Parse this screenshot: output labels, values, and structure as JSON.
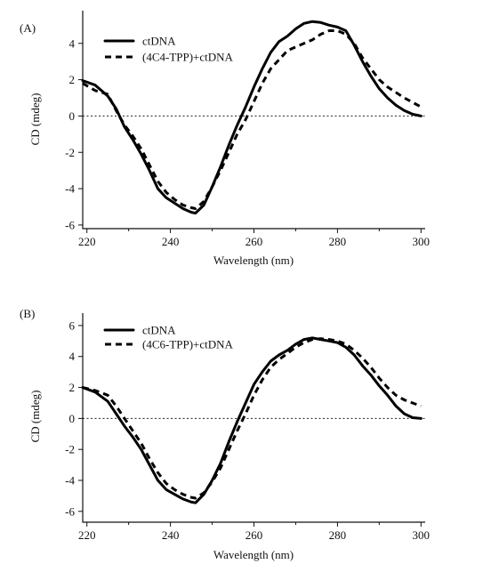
{
  "chart_data": [
    {
      "type": "line",
      "panel_label": "(A)",
      "xlabel": "Wavelength (nm)",
      "ylabel": "CD (mdeg)",
      "xlim": [
        219,
        301
      ],
      "ylim": [
        -6.2,
        5.8
      ],
      "xticks": [
        220,
        240,
        260,
        280,
        300
      ],
      "yticks": [
        -6,
        -4,
        -2,
        0,
        2,
        4
      ],
      "zero_line": true,
      "grid": false,
      "legend_position": "top-left",
      "series": [
        {
          "name": "ctDNA",
          "style": "solid",
          "x": [
            219,
            222,
            225,
            227,
            229,
            231,
            233,
            235,
            237,
            239,
            241,
            243,
            245,
            246,
            248,
            250,
            252,
            254,
            256,
            258,
            260,
            262,
            264,
            266,
            268,
            270,
            272,
            274,
            276,
            278,
            280,
            282,
            284,
            286,
            288,
            290,
            292,
            294,
            296,
            298,
            300
          ],
          "y": [
            1.95,
            1.7,
            1.1,
            0.4,
            -0.6,
            -1.3,
            -2.1,
            -3.0,
            -4.0,
            -4.5,
            -4.8,
            -5.1,
            -5.3,
            -5.35,
            -4.9,
            -3.9,
            -2.8,
            -1.6,
            -0.5,
            0.5,
            1.6,
            2.6,
            3.5,
            4.1,
            4.4,
            4.8,
            5.1,
            5.2,
            5.15,
            5.0,
            4.9,
            4.7,
            3.9,
            3.0,
            2.2,
            1.5,
            1.0,
            0.6,
            0.3,
            0.1,
            0.0
          ]
        },
        {
          "name": "(4C4-TPP)+ctDNA",
          "style": "dashed",
          "x": [
            219,
            222,
            225,
            227,
            229,
            231,
            233,
            235,
            237,
            239,
            241,
            243,
            245,
            246,
            248,
            250,
            252,
            254,
            256,
            258,
            260,
            262,
            264,
            266,
            268,
            270,
            272,
            274,
            276,
            278,
            280,
            282,
            284,
            286,
            288,
            290,
            292,
            294,
            296,
            298,
            300
          ],
          "y": [
            1.8,
            1.4,
            1.2,
            0.3,
            -0.5,
            -1.1,
            -1.8,
            -2.7,
            -3.6,
            -4.2,
            -4.6,
            -4.9,
            -5.05,
            -5.1,
            -4.7,
            -3.9,
            -3.0,
            -2.0,
            -1.0,
            -0.2,
            0.8,
            1.8,
            2.6,
            3.1,
            3.6,
            3.8,
            4.0,
            4.2,
            4.5,
            4.7,
            4.7,
            4.5,
            4.0,
            3.2,
            2.6,
            2.0,
            1.6,
            1.3,
            1.0,
            0.75,
            0.5
          ]
        }
      ]
    },
    {
      "type": "line",
      "panel_label": "(B)",
      "xlabel": "Wavelength (nm)",
      "ylabel": "CD (mdeg)",
      "xlim": [
        219,
        301
      ],
      "ylim": [
        -6.7,
        6.8
      ],
      "xticks": [
        220,
        240,
        260,
        280,
        300
      ],
      "yticks": [
        -6,
        -4,
        -2,
        0,
        2,
        4,
        6
      ],
      "zero_line": true,
      "grid": false,
      "legend_position": "top-left",
      "series": [
        {
          "name": "ctDNA",
          "style": "solid",
          "x": [
            219,
            222,
            225,
            227,
            229,
            231,
            233,
            235,
            237,
            239,
            241,
            243,
            245,
            246,
            248,
            250,
            252,
            254,
            256,
            258,
            260,
            262,
            264,
            266,
            268,
            270,
            272,
            274,
            276,
            278,
            280,
            282,
            284,
            286,
            288,
            290,
            292,
            294,
            296,
            298,
            300
          ],
          "y": [
            2.0,
            1.7,
            1.1,
            0.3,
            -0.5,
            -1.2,
            -2.0,
            -3.0,
            -4.0,
            -4.6,
            -4.9,
            -5.2,
            -5.4,
            -5.45,
            -4.9,
            -4.0,
            -2.9,
            -1.5,
            -0.2,
            1.0,
            2.2,
            3.0,
            3.7,
            4.1,
            4.4,
            4.8,
            5.1,
            5.2,
            5.1,
            5.0,
            4.9,
            4.6,
            4.1,
            3.4,
            2.8,
            2.1,
            1.5,
            0.8,
            0.3,
            0.05,
            0.0
          ]
        },
        {
          "name": "(4C6-TPP)+ctDNA",
          "style": "dashed",
          "x": [
            219,
            222,
            225,
            227,
            229,
            231,
            233,
            235,
            237,
            239,
            241,
            243,
            245,
            246,
            248,
            250,
            252,
            254,
            256,
            258,
            260,
            262,
            264,
            266,
            268,
            270,
            272,
            274,
            276,
            278,
            280,
            282,
            284,
            286,
            288,
            290,
            292,
            294,
            296,
            298,
            300
          ],
          "y": [
            2.0,
            1.8,
            1.5,
            0.8,
            0.0,
            -0.8,
            -1.6,
            -2.6,
            -3.5,
            -4.2,
            -4.6,
            -4.9,
            -5.1,
            -5.15,
            -4.8,
            -4.1,
            -3.2,
            -2.0,
            -0.8,
            0.3,
            1.5,
            2.5,
            3.3,
            3.8,
            4.2,
            4.6,
            4.9,
            5.1,
            5.15,
            5.1,
            5.0,
            4.8,
            4.4,
            3.9,
            3.3,
            2.6,
            2.0,
            1.5,
            1.2,
            1.0,
            0.8
          ]
        }
      ]
    }
  ]
}
